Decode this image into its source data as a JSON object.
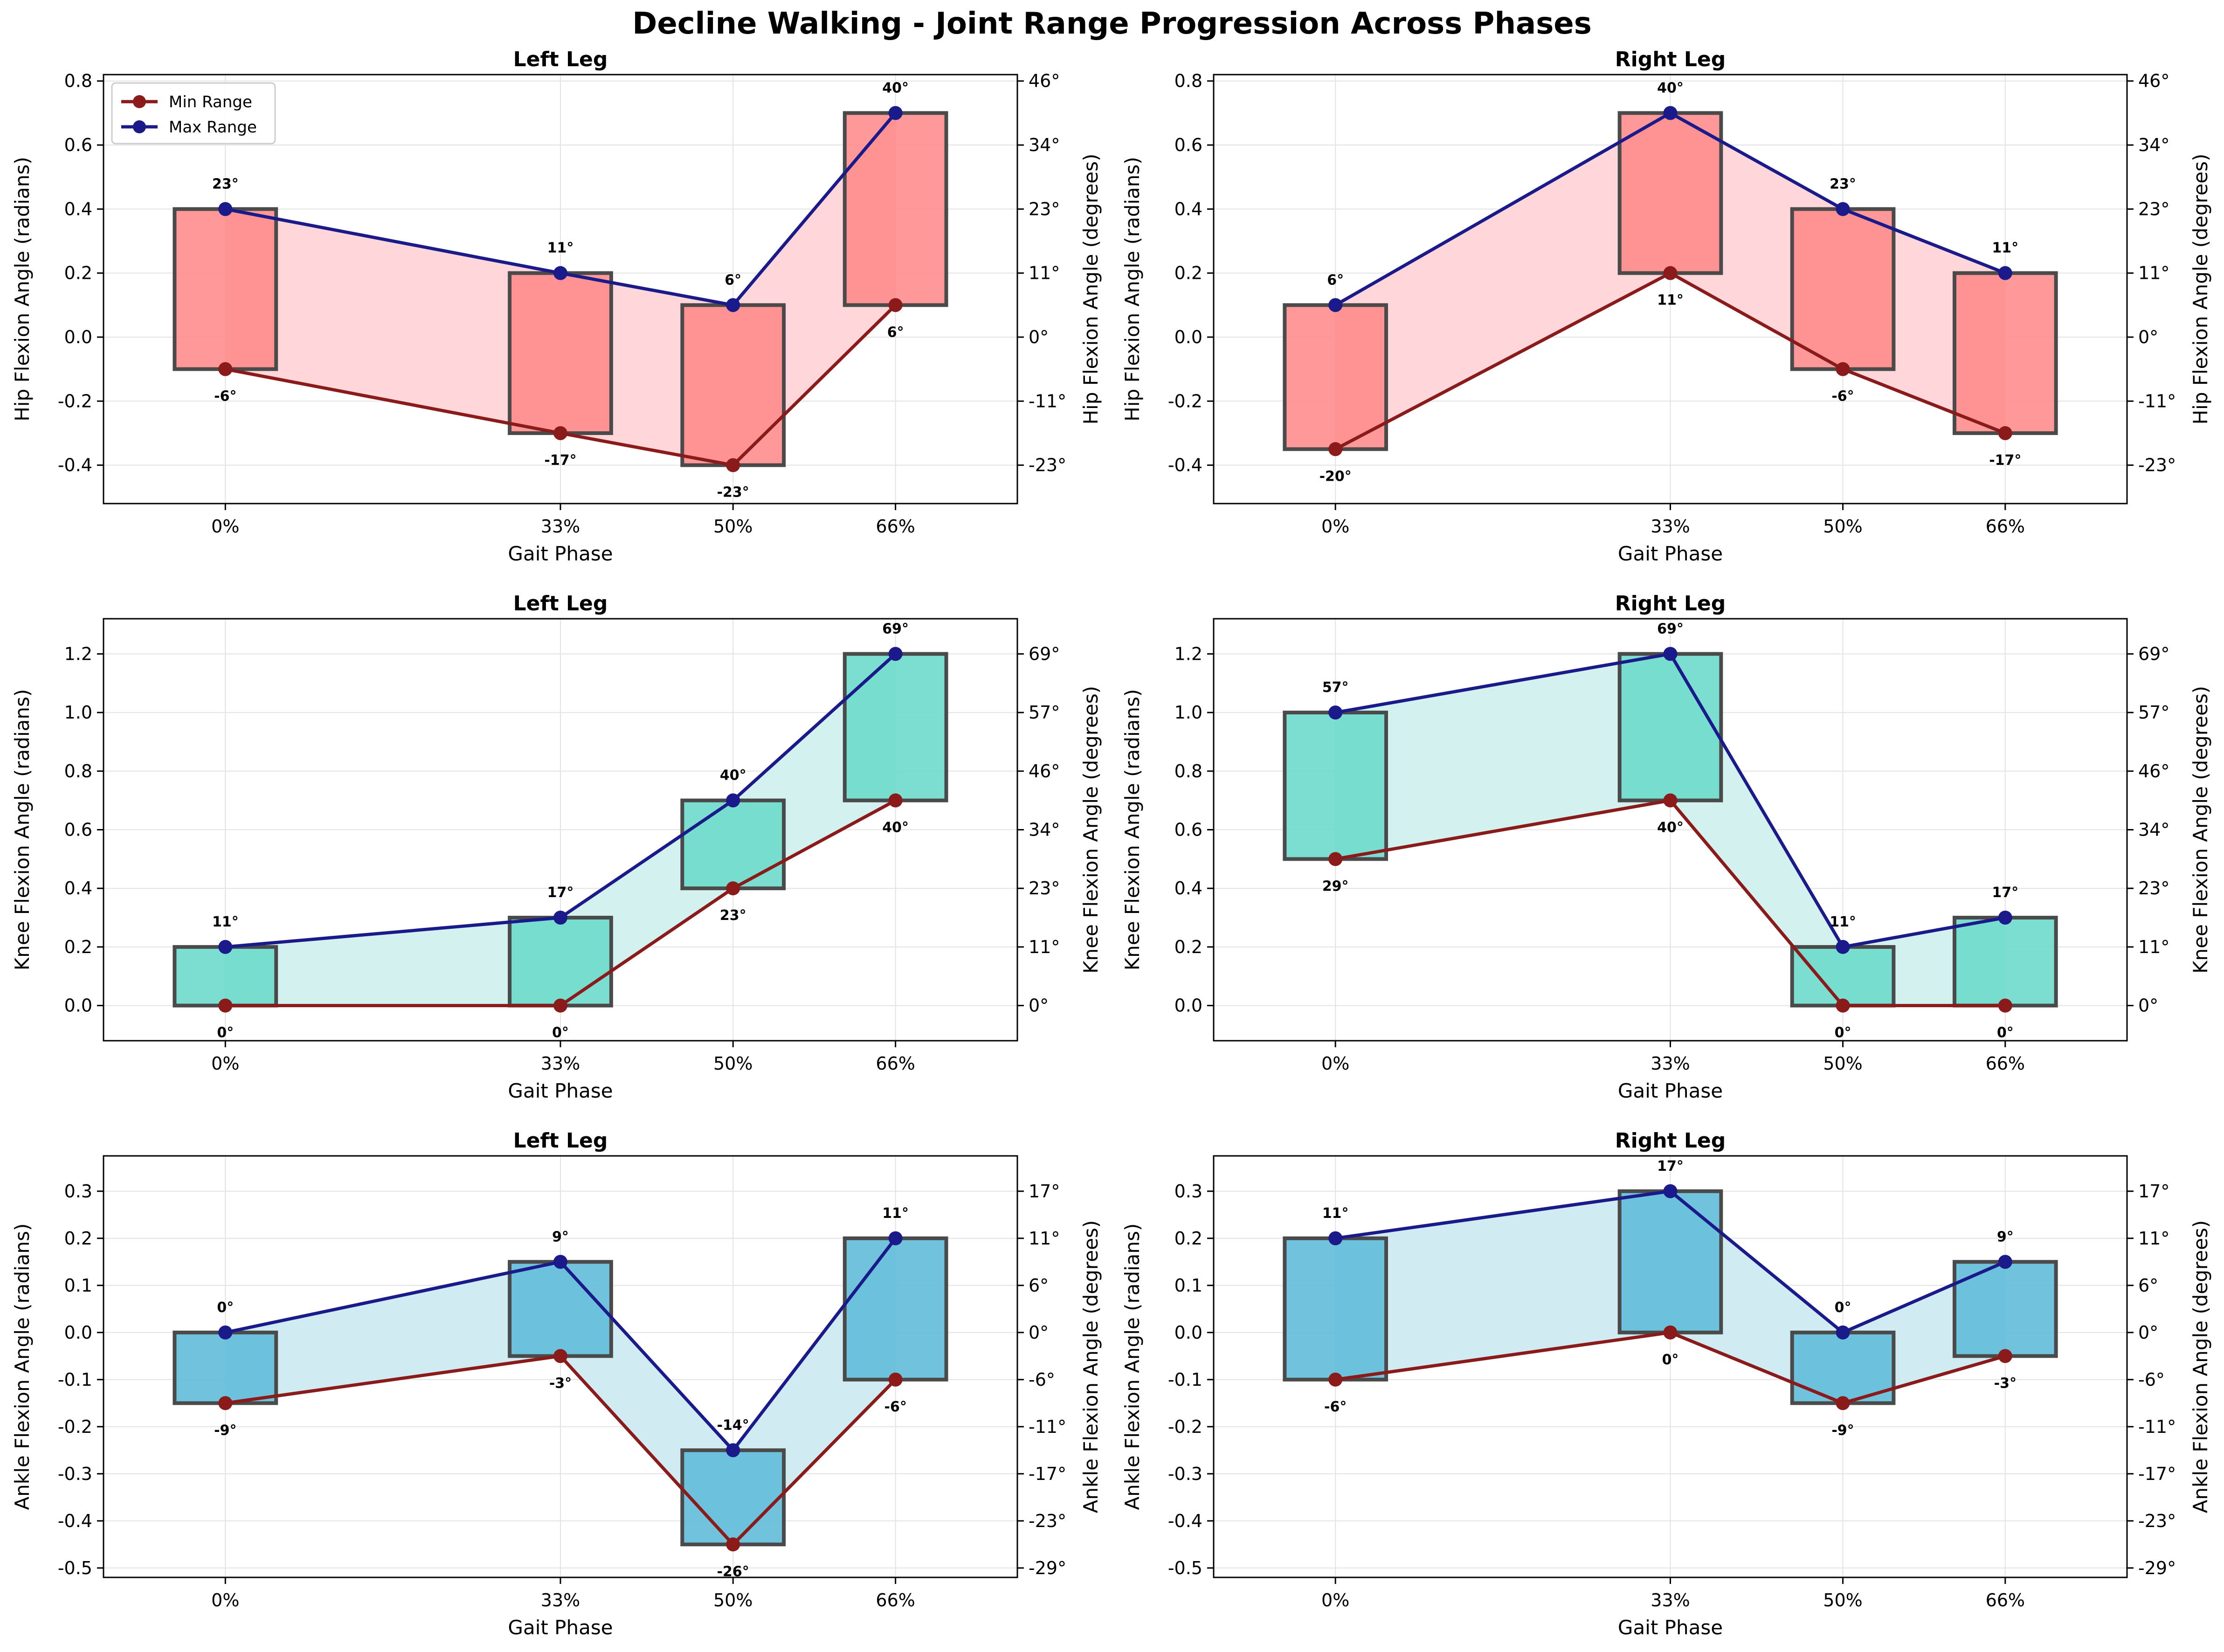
{
  "figure": {
    "title": "Decline Walking - Joint Range Progression Across Phases"
  },
  "legend": {
    "min_label": "Min Range",
    "max_label": "Max Range",
    "placement": "upper-left (top-left subplot only)"
  },
  "colors": {
    "min_line": "#8B1A1A",
    "max_line": "#1A1A8B",
    "hip_bar": "#FF8A8A",
    "knee_bar": "#6AD9CB",
    "ankle_bar": "#5DBBD8",
    "hip_fill": "#FFD6DA",
    "knee_fill": "#D3F1EE",
    "ankle_fill": "#D0ECF2",
    "bar_edge": "#4a4a4a"
  },
  "chart_data": [
    {
      "type": "bar",
      "title": "Left Leg",
      "xlabel": "Gait Phase",
      "ylabel": "Hip Flexion Angle (radians)",
      "ylabel_right": "Hip Flexion Angle (degrees)",
      "joint": "hip",
      "x": [
        0,
        33,
        50,
        66
      ],
      "categories": [
        "0%",
        "33%",
        "50%",
        "66%"
      ],
      "min": [
        -0.1,
        -0.3,
        -0.4,
        0.1
      ],
      "max": [
        0.4,
        0.2,
        0.1,
        0.7
      ],
      "min_labels": [
        "-6°",
        "-17°",
        "-23°",
        "6°"
      ],
      "max_labels": [
        "23°",
        "11°",
        "6°",
        "40°"
      ],
      "ylim": [
        -0.52,
        0.82
      ],
      "yticks": [
        -0.4,
        -0.2,
        0.0,
        0.2,
        0.4,
        0.6,
        0.8
      ],
      "yticks_right": [
        -0.4,
        -0.2,
        0.0,
        0.2,
        0.4,
        0.6,
        0.8
      ],
      "ytick_labels_right": [
        "-23°",
        "-11°",
        "0°",
        "11°",
        "23°",
        "34°",
        "46°"
      ],
      "legend": true
    },
    {
      "type": "bar",
      "title": "Right Leg",
      "xlabel": "Gait Phase",
      "ylabel": "Hip Flexion Angle (radians)",
      "ylabel_right": "Hip Flexion Angle (degrees)",
      "joint": "hip",
      "x": [
        0,
        33,
        50,
        66
      ],
      "categories": [
        "0%",
        "33%",
        "50%",
        "66%"
      ],
      "min": [
        -0.35,
        0.2,
        -0.1,
        -0.3
      ],
      "max": [
        0.1,
        0.7,
        0.4,
        0.2
      ],
      "min_labels": [
        "-20°",
        "11°",
        "-6°",
        "-17°"
      ],
      "max_labels": [
        "6°",
        "40°",
        "23°",
        "11°"
      ],
      "ylim": [
        -0.52,
        0.82
      ],
      "yticks": [
        -0.4,
        -0.2,
        0.0,
        0.2,
        0.4,
        0.6,
        0.8
      ],
      "yticks_right": [
        -0.4,
        -0.2,
        0.0,
        0.2,
        0.4,
        0.6,
        0.8
      ],
      "ytick_labels_right": [
        "-23°",
        "-11°",
        "0°",
        "11°",
        "23°",
        "34°",
        "46°"
      ],
      "legend": false
    },
    {
      "type": "bar",
      "title": "Left Leg",
      "xlabel": "Gait Phase",
      "ylabel": "Knee Flexion Angle (radians)",
      "ylabel_right": "Knee Flexion Angle (degrees)",
      "joint": "knee",
      "x": [
        0,
        33,
        50,
        66
      ],
      "categories": [
        "0%",
        "33%",
        "50%",
        "66%"
      ],
      "min": [
        0.0,
        0.0,
        0.4,
        0.7
      ],
      "max": [
        0.2,
        0.3,
        0.7,
        1.2
      ],
      "min_labels": [
        "0°",
        "0°",
        "23°",
        "40°"
      ],
      "max_labels": [
        "11°",
        "17°",
        "40°",
        "69°"
      ],
      "ylim": [
        -0.12,
        1.32
      ],
      "yticks": [
        0.0,
        0.2,
        0.4,
        0.6,
        0.8,
        1.0,
        1.2
      ],
      "yticks_right": [
        0.0,
        0.2,
        0.4,
        0.6,
        0.8,
        1.0,
        1.2
      ],
      "ytick_labels_right": [
        "0°",
        "11°",
        "23°",
        "34°",
        "46°",
        "57°",
        "69°"
      ],
      "legend": false
    },
    {
      "type": "bar",
      "title": "Right Leg",
      "xlabel": "Gait Phase",
      "ylabel": "Knee Flexion Angle (radians)",
      "ylabel_right": "Knee Flexion Angle (degrees)",
      "joint": "knee",
      "x": [
        0,
        33,
        50,
        66
      ],
      "categories": [
        "0%",
        "33%",
        "50%",
        "66%"
      ],
      "min": [
        0.5,
        0.7,
        0.0,
        0.0
      ],
      "max": [
        1.0,
        1.2,
        0.2,
        0.3
      ],
      "min_labels": [
        "29°",
        "40°",
        "0°",
        "0°"
      ],
      "max_labels": [
        "57°",
        "69°",
        "11°",
        "17°"
      ],
      "ylim": [
        -0.12,
        1.32
      ],
      "yticks": [
        0.0,
        0.2,
        0.4,
        0.6,
        0.8,
        1.0,
        1.2
      ],
      "yticks_right": [
        0.0,
        0.2,
        0.4,
        0.6,
        0.8,
        1.0,
        1.2
      ],
      "ytick_labels_right": [
        "0°",
        "11°",
        "23°",
        "34°",
        "46°",
        "57°",
        "69°"
      ],
      "legend": false
    },
    {
      "type": "bar",
      "title": "Left Leg",
      "xlabel": "Gait Phase",
      "ylabel": "Ankle Flexion Angle (radians)",
      "ylabel_right": "Ankle Flexion Angle (degrees)",
      "joint": "ankle",
      "x": [
        0,
        33,
        50,
        66
      ],
      "categories": [
        "0%",
        "33%",
        "50%",
        "66%"
      ],
      "min": [
        -0.15,
        -0.05,
        -0.45,
        -0.1
      ],
      "max": [
        0.0,
        0.15,
        -0.25,
        0.2
      ],
      "min_labels": [
        "-9°",
        "-3°",
        "-26°",
        "-6°"
      ],
      "max_labels": [
        "0°",
        "9°",
        "-14°",
        "11°"
      ],
      "ylim": [
        -0.52,
        0.375
      ],
      "yticks": [
        -0.5,
        -0.4,
        -0.3,
        -0.2,
        -0.1,
        0.0,
        0.1,
        0.2,
        0.3
      ],
      "yticks_right": [
        -0.5,
        -0.4,
        -0.3,
        -0.2,
        -0.1,
        0.0,
        0.1,
        0.2,
        0.3
      ],
      "ytick_labels_right": [
        "-29°",
        "-23°",
        "-17°",
        "-11°",
        "-6°",
        "0°",
        "6°",
        "11°",
        "17°"
      ],
      "legend": false
    },
    {
      "type": "bar",
      "title": "Right Leg",
      "xlabel": "Gait Phase",
      "ylabel": "Ankle Flexion Angle (radians)",
      "ylabel_right": "Ankle Flexion Angle (degrees)",
      "joint": "ankle",
      "x": [
        0,
        33,
        50,
        66
      ],
      "categories": [
        "0%",
        "33%",
        "50%",
        "66%"
      ],
      "min": [
        -0.1,
        0.0,
        -0.15,
        -0.05
      ],
      "max": [
        0.2,
        0.3,
        0.0,
        0.15
      ],
      "min_labels": [
        "-6°",
        "0°",
        "-9°",
        "-3°"
      ],
      "max_labels": [
        "11°",
        "17°",
        "0°",
        "9°"
      ],
      "ylim": [
        -0.52,
        0.375
      ],
      "yticks": [
        -0.5,
        -0.4,
        -0.3,
        -0.2,
        -0.1,
        0.0,
        0.1,
        0.2,
        0.3
      ],
      "yticks_right": [
        -0.5,
        -0.4,
        -0.3,
        -0.2,
        -0.1,
        0.0,
        0.1,
        0.2,
        0.3
      ],
      "ytick_labels_right": [
        "-29°",
        "-23°",
        "-17°",
        "-11°",
        "-6°",
        "0°",
        "6°",
        "11°",
        "17°"
      ],
      "legend": false
    }
  ]
}
